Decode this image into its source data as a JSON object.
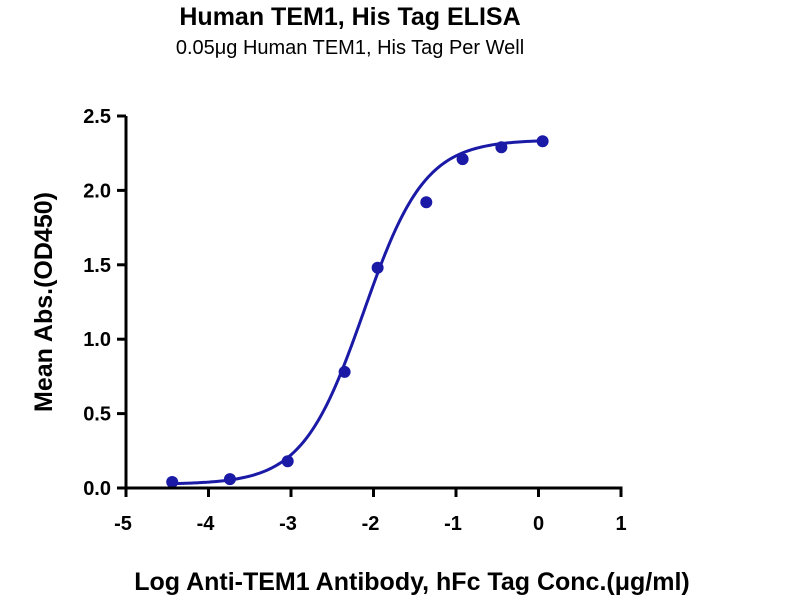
{
  "chart_data": {
    "type": "scatter",
    "title": "Human TEM1, His Tag ELISA",
    "subtitle": "0.05μg Human TEM1, His Tag Per Well",
    "xlabel": "Log Anti-TEM1 Antibody, hFc Tag Conc.(μg/ml)",
    "ylabel": "Mean Abs.(OD450)",
    "xlim": [
      -5,
      1
    ],
    "ylim": [
      0,
      2.5
    ],
    "x_ticks": [
      "-5",
      "-4",
      "-3",
      "-2",
      "-1",
      "0",
      "1"
    ],
    "y_ticks": [
      "0.0",
      "0.5",
      "1.0",
      "1.5",
      "2.0",
      "2.5"
    ],
    "grid": false,
    "colors": {
      "series": "#1a1aa6",
      "axis": "#000000"
    },
    "series": [
      {
        "x": [
          -4.44,
          -3.74,
          -3.04,
          -2.35,
          -1.95,
          -1.36,
          -0.92,
          -0.45,
          0.05
        ],
        "y": [
          0.04,
          0.06,
          0.18,
          0.78,
          1.48,
          1.92,
          2.21,
          2.29,
          2.33
        ]
      }
    ],
    "fit_curve": {
      "model": "4PL",
      "bottom": 0.025,
      "top": 2.34,
      "log_ec50": -2.12,
      "hill_slope": 1.17,
      "x_range": [
        -4.44,
        0.05
      ]
    }
  }
}
